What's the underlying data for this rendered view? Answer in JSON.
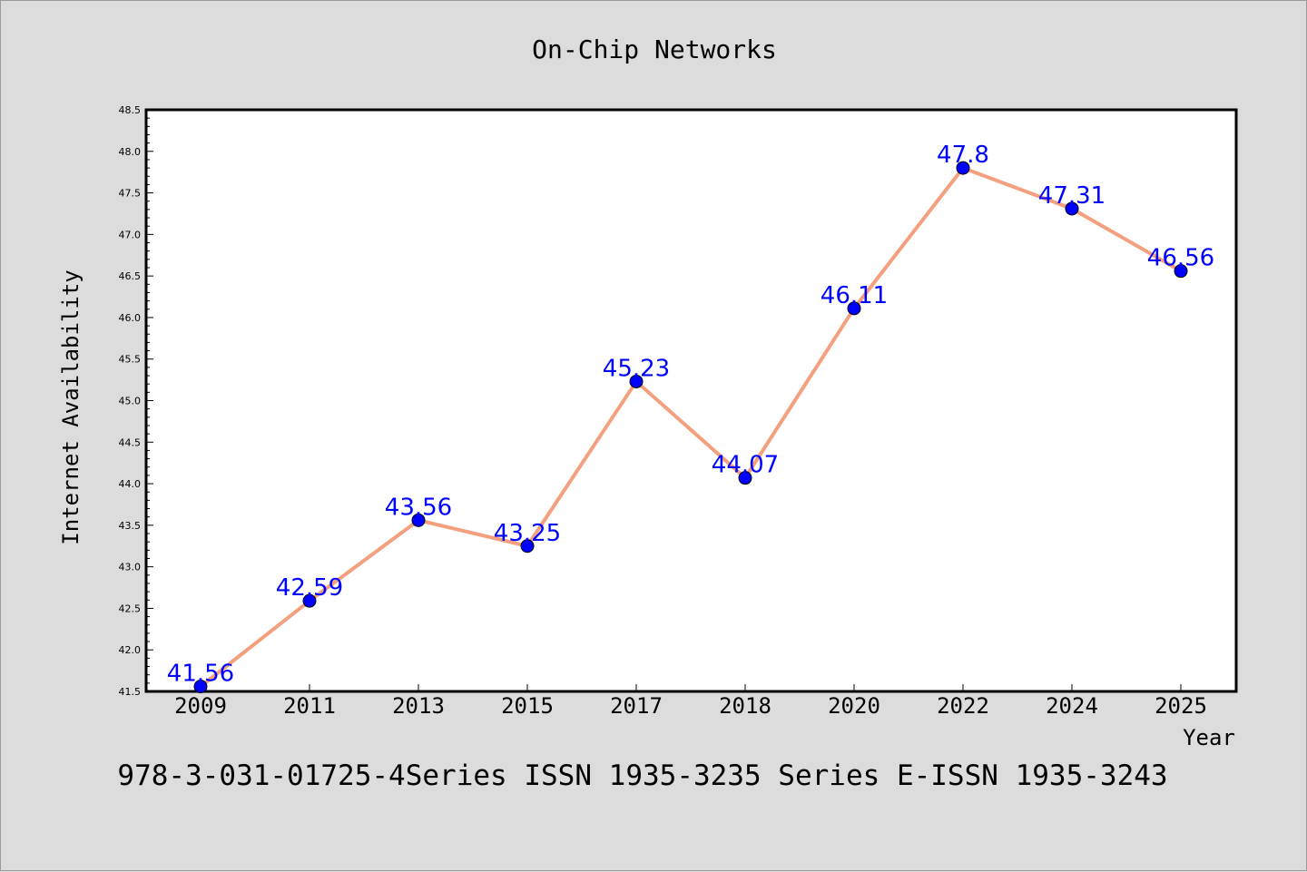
{
  "chart_data": {
    "type": "line",
    "title": "On-Chip Networks",
    "xlabel": "Year",
    "ylabel": "Internet Availability",
    "footer": "978-3-031-01725-4Series ISSN 1935-3235 Series E-ISSN 1935-3243",
    "categories": [
      "2009",
      "2011",
      "2013",
      "2015",
      "2017",
      "2018",
      "2020",
      "2022",
      "2024",
      "2025"
    ],
    "series": [
      {
        "values": [
          41.56,
          42.59,
          43.56,
          43.25,
          45.23,
          44.07,
          46.11,
          47.8,
          47.31,
          46.56
        ],
        "labels": [
          "41.56",
          "42.59",
          "43.56",
          "43.25",
          "45.23",
          "44.07",
          "46.11",
          "47.8",
          "47.31",
          "46.56"
        ],
        "line_color": "#f4a07f",
        "marker_color": "#0000ff",
        "label_color": "#0000ff"
      }
    ],
    "ylim": [
      41.5,
      48.5
    ],
    "yticks": [
      "41.5",
      "42.0",
      "42.5",
      "43.0",
      "43.5",
      "44.0",
      "44.5",
      "45.0",
      "45.5",
      "46.0",
      "46.5",
      "47.0",
      "47.5",
      "48.0",
      "48.5"
    ],
    "grid": false,
    "background_color": "#dcdcdc",
    "plot_area_color": "#ffffff"
  }
}
